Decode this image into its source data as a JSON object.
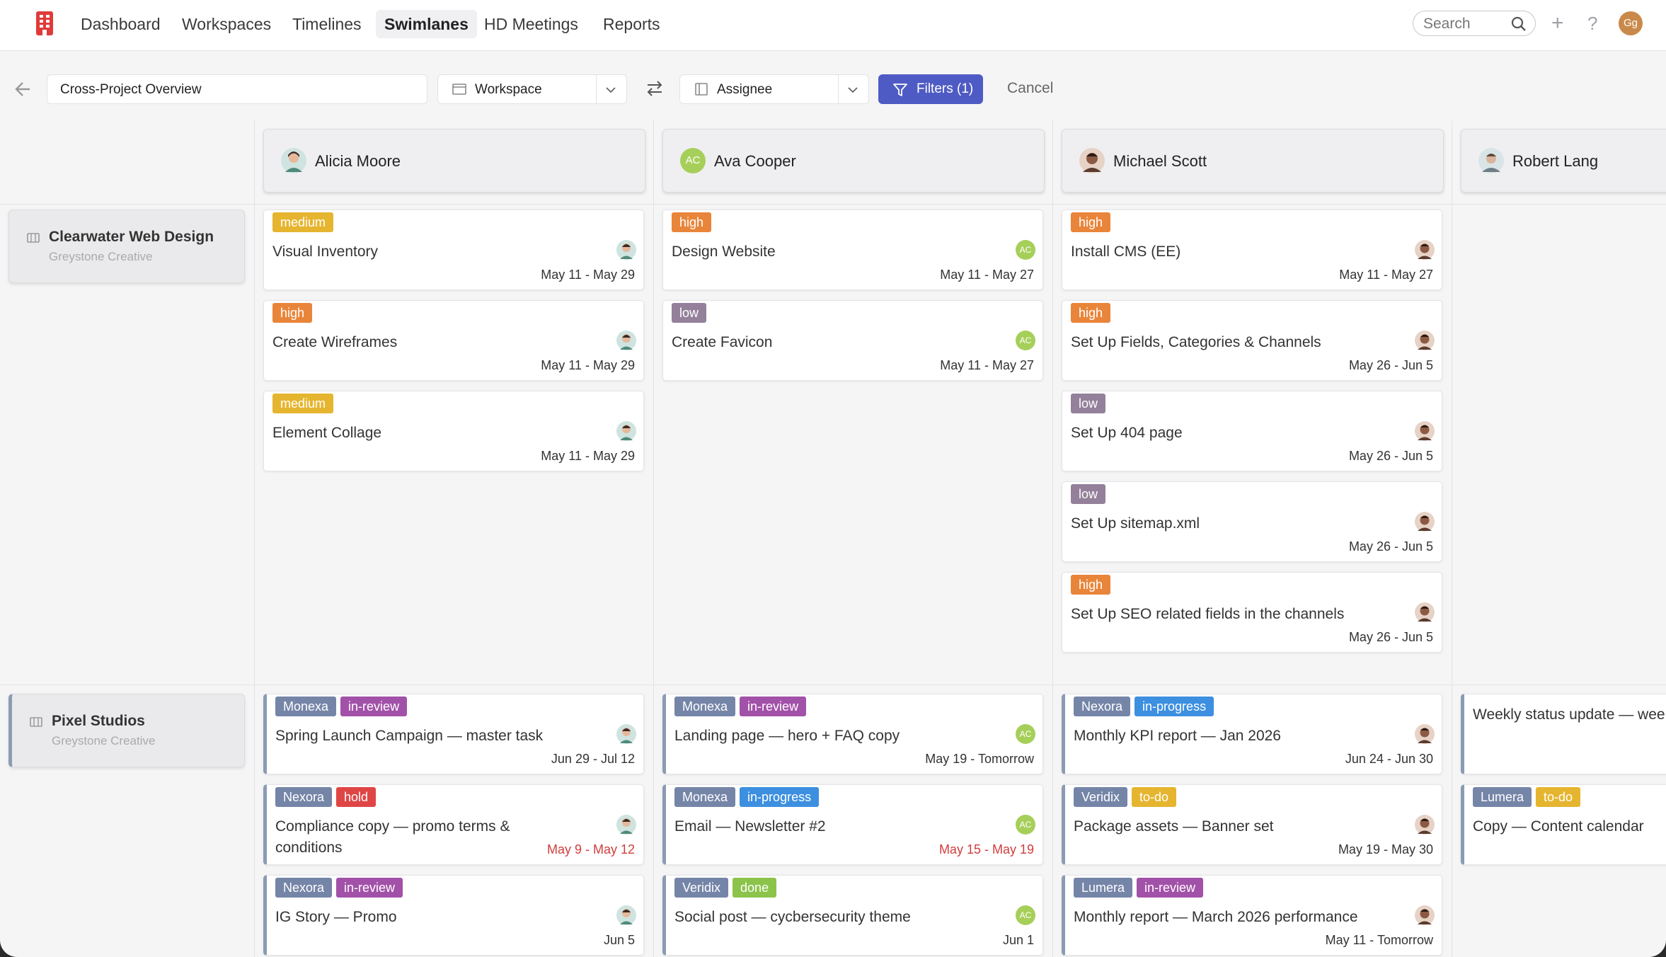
{
  "nav": {
    "items": [
      "Dashboard",
      "Workspaces",
      "Timelines",
      "Swimlanes",
      "HD Meetings",
      "Reports"
    ],
    "active": "Swimlanes",
    "search_placeholder": "Search",
    "avatar_initials": "Gg"
  },
  "toolbar": {
    "view_name": "Cross-Project Overview",
    "group_rows": "Workspace",
    "group_columns": "Assignee",
    "filters_label": "Filters (1)",
    "cancel_label": "Cancel"
  },
  "columns": [
    {
      "name": "Alicia Moore"
    },
    {
      "name": "Ava Cooper",
      "initials": "AC"
    },
    {
      "name": "Michael Scott"
    },
    {
      "name": "Robert Lang"
    }
  ],
  "lanes": [
    {
      "title": "Clearwater Web Design",
      "subtitle": "Greystone Creative"
    },
    {
      "title": "Pixel Studios",
      "subtitle": "Greystone Creative"
    }
  ],
  "colors": {
    "medium": "#e6b52f",
    "high": "#e9853a",
    "low": "#94809a",
    "monexa": "#7585a8",
    "nexora": "#7585a8",
    "veridix": "#7585a8",
    "lumera": "#7585a8",
    "in-review": "#a251a8",
    "in-progress": "#3d8fe0",
    "hold": "#e04545",
    "done": "#8cc34a",
    "to-do": "#e6b52f",
    "primary": "#4f5bc4"
  },
  "cards": {
    "l1c1": [
      {
        "tags": [
          "medium"
        ],
        "title": "Visual Inventory",
        "date": "May 11 - May 29"
      },
      {
        "tags": [
          "high"
        ],
        "title": "Create Wireframes",
        "date": "May 11 - May 29"
      },
      {
        "tags": [
          "medium"
        ],
        "title": "Element Collage",
        "date": "May 11 - May 29"
      }
    ],
    "l1c2": [
      {
        "tags": [
          "high"
        ],
        "title": "Design Website",
        "date": "May 11 - May 27"
      },
      {
        "tags": [
          "low"
        ],
        "title": "Create Favicon",
        "date": "May 11 - May 27"
      }
    ],
    "l1c3": [
      {
        "tags": [
          "high"
        ],
        "title": "Install CMS (EE)",
        "date": "May 11 - May 27"
      },
      {
        "tags": [
          "high"
        ],
        "title": "Set Up Fields, Categories & Channels",
        "date": "May 26 - Jun 5"
      },
      {
        "tags": [
          "low"
        ],
        "title": "Set Up 404 page",
        "date": "May 26 - Jun 5"
      },
      {
        "tags": [
          "low"
        ],
        "title": "Set Up sitemap.xml",
        "date": "May 26 - Jun 5"
      },
      {
        "tags": [
          "high"
        ],
        "title": "Set Up SEO related fields in the channels",
        "date": "May 26 - Jun 5"
      }
    ],
    "l2c1": [
      {
        "tags": [
          "Monexa",
          "in-review"
        ],
        "title": "Spring Launch Campaign — master task",
        "date": "Jun 29 - Jul 12"
      },
      {
        "tags": [
          "Nexora",
          "hold"
        ],
        "title": "Compliance copy — promo terms & conditions",
        "date": "May 9 - May 12",
        "overdue": true
      },
      {
        "tags": [
          "Nexora",
          "in-review"
        ],
        "title": "IG Story — Promo",
        "date": "Jun 5"
      }
    ],
    "l2c2": [
      {
        "tags": [
          "Monexa",
          "in-review"
        ],
        "title": "Landing page — hero + FAQ copy",
        "date": "May 19 - Tomorrow"
      },
      {
        "tags": [
          "Monexa",
          "in-progress"
        ],
        "title": "Email — Newsletter #2",
        "date": "May 15 - May 19",
        "overdue": true
      },
      {
        "tags": [
          "Veridix",
          "done"
        ],
        "title": "Social post — cycbersecurity theme",
        "date": "Jun 1"
      }
    ],
    "l2c3": [
      {
        "tags": [
          "Nexora",
          "in-progress"
        ],
        "title": "Monthly KPI report — Jan 2026",
        "date": "Jun 24 - Jun 30"
      },
      {
        "tags": [
          "Veridix",
          "to-do"
        ],
        "title": "Package assets — Banner set",
        "date": "May 19 - May 30"
      },
      {
        "tags": [
          "Lumera",
          "in-review"
        ],
        "title": "Monthly report — March 2026 performance",
        "date": "May 11 - Tomorrow"
      }
    ],
    "l2c4": [
      {
        "tags": [],
        "title": "Weekly status update — week"
      },
      {
        "tags": [
          "Lumera",
          "to-do"
        ],
        "title": "Copy — Content calendar"
      }
    ]
  }
}
